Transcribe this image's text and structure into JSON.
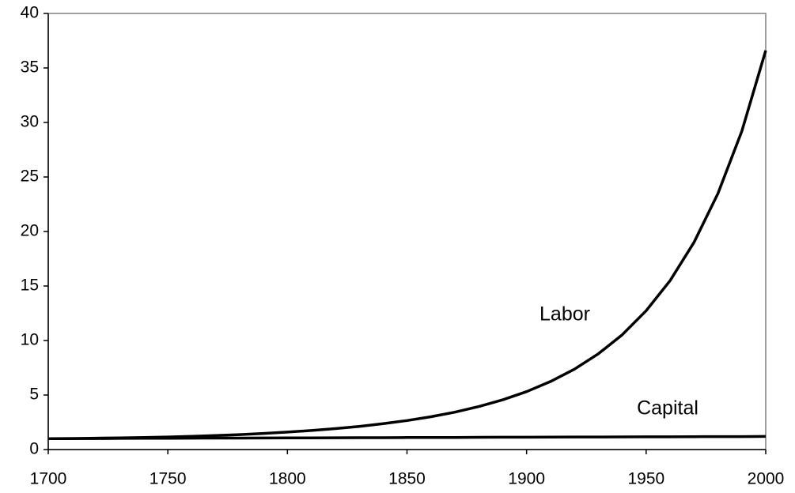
{
  "chart_data": {
    "type": "line",
    "x": [
      1700,
      1710,
      1720,
      1730,
      1740,
      1750,
      1760,
      1770,
      1780,
      1790,
      1800,
      1810,
      1820,
      1830,
      1840,
      1850,
      1860,
      1870,
      1880,
      1890,
      1900,
      1910,
      1920,
      1930,
      1940,
      1950,
      1960,
      1970,
      1980,
      1990,
      2000
    ],
    "series": [
      {
        "name": "Labor",
        "color": "#000000",
        "values": [
          1.0,
          1.01,
          1.04,
          1.07,
          1.11,
          1.15,
          1.21,
          1.29,
          1.37,
          1.48,
          1.6,
          1.75,
          1.92,
          2.12,
          2.37,
          2.66,
          3.01,
          3.43,
          3.94,
          4.56,
          5.31,
          6.24,
          7.37,
          8.78,
          10.53,
          12.73,
          15.49,
          19.0,
          23.47,
          29.2,
          36.6
        ]
      },
      {
        "name": "Capital",
        "color": "#000000",
        "values": [
          1.0,
          1.01,
          1.01,
          1.02,
          1.03,
          1.03,
          1.04,
          1.05,
          1.05,
          1.06,
          1.07,
          1.07,
          1.08,
          1.09,
          1.09,
          1.1,
          1.11,
          1.11,
          1.12,
          1.13,
          1.13,
          1.14,
          1.15,
          1.15,
          1.16,
          1.17,
          1.17,
          1.18,
          1.19,
          1.19,
          1.2
        ]
      }
    ],
    "xlim": [
      1700,
      2000
    ],
    "xticks": [
      1700,
      1750,
      1800,
      1850,
      1900,
      1950,
      2000
    ],
    "ylim": [
      0,
      40
    ],
    "yticks": [
      0,
      5,
      10,
      15,
      20,
      25,
      30,
      35,
      40
    ],
    "grid": false
  }
}
